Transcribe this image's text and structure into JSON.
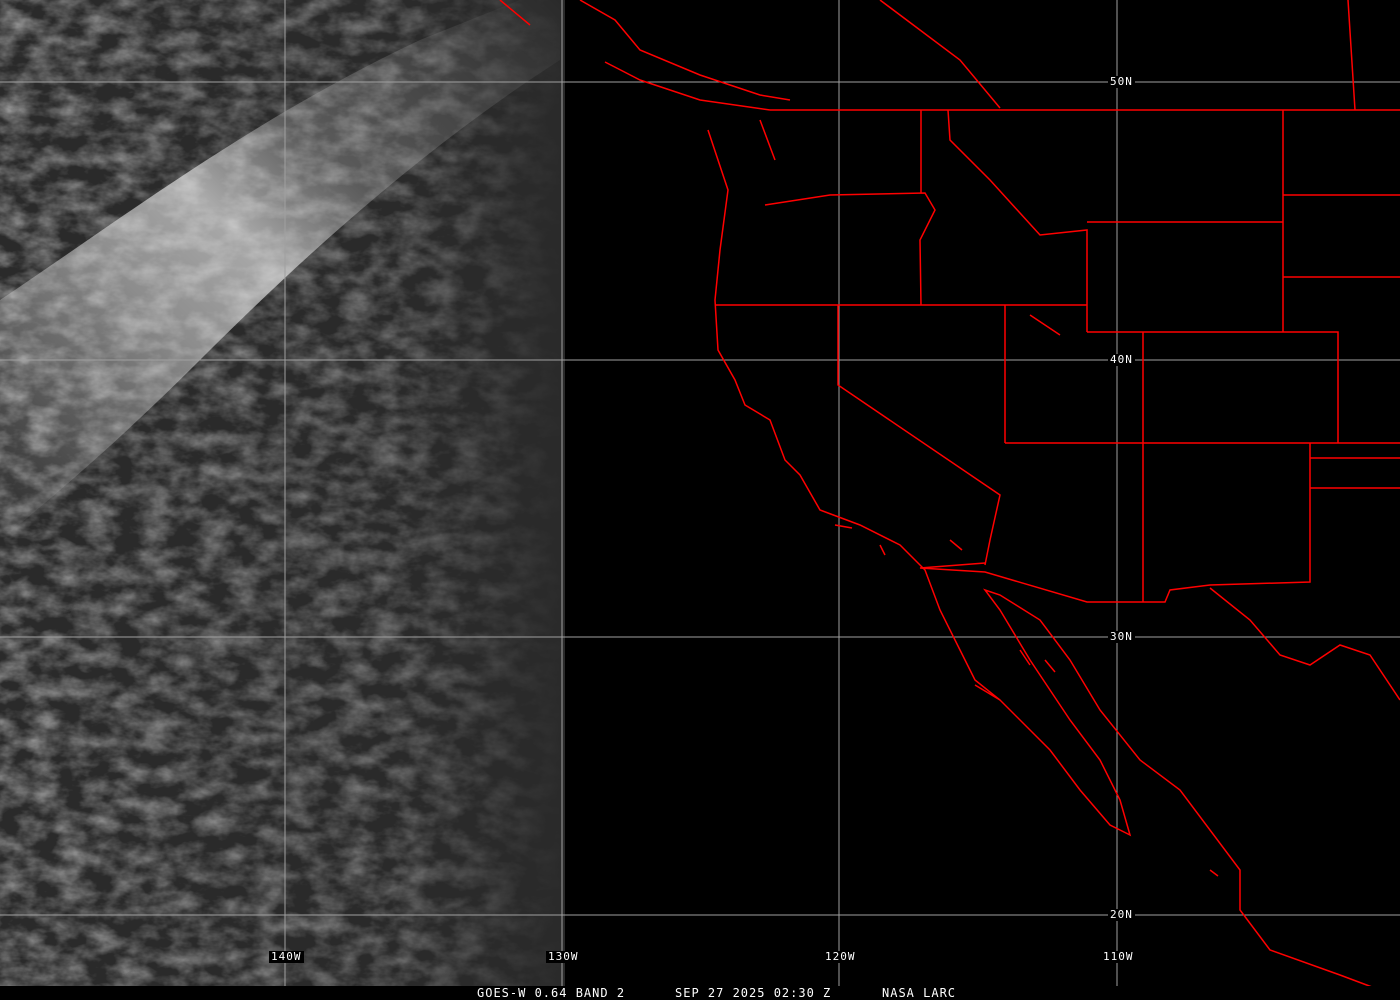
{
  "caption": {
    "satellite": "GOES-W 0.64 BAND 2",
    "datetime": "SEP 27 2025 02:30 Z",
    "source": "NASA LARC"
  },
  "grid": {
    "latitudes": [
      "50N",
      "40N",
      "30N",
      "20N"
    ],
    "longitudes": [
      "140W",
      "130W",
      "120W",
      "110W"
    ]
  },
  "colors": {
    "boundaries": "#ff0000",
    "grid": "#a0a0a0",
    "background": "#000000"
  }
}
